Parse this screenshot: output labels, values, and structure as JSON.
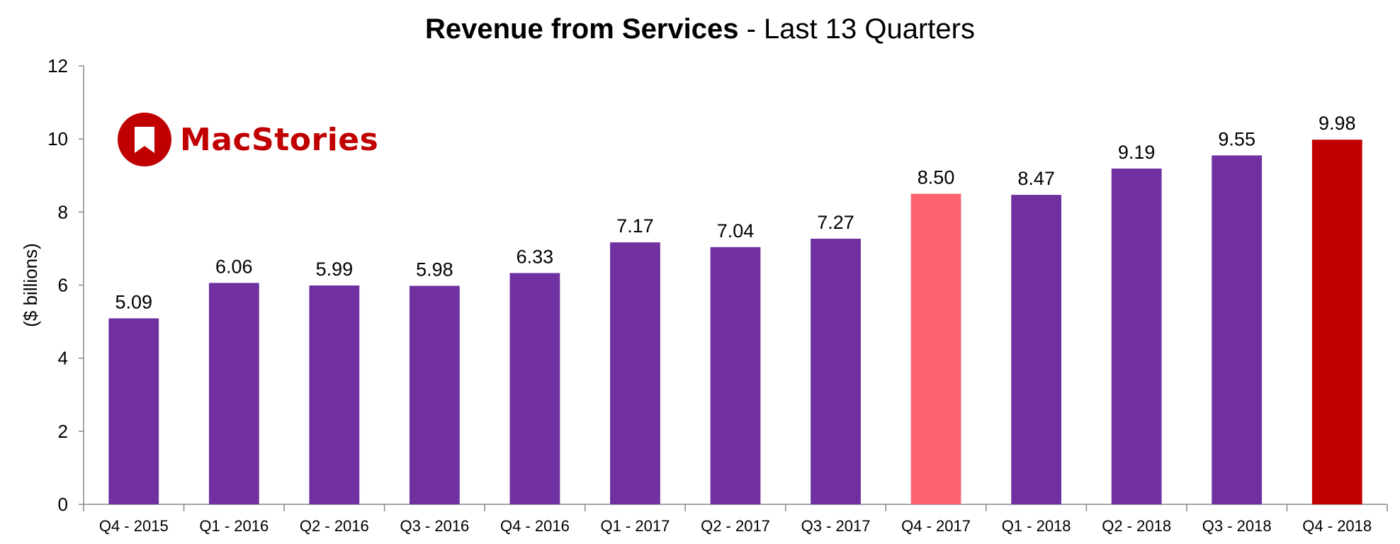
{
  "title": {
    "main": "Revenue from Services",
    "separator": " - ",
    "sub": "Last 13 Quarters"
  },
  "logo": {
    "text": "MacStories",
    "icon": "bookmark-icon",
    "color": "#c00000"
  },
  "colors": {
    "bar_default": "#7030a0",
    "bar_highlight_prev_year": "#ff6370",
    "bar_highlight_current": "#c00000",
    "axis": "#888888"
  },
  "chart_data": {
    "type": "bar",
    "title": "Revenue from Services - Last 13 Quarters",
    "xlabel": "",
    "ylabel": "($ billions)",
    "ylim": [
      0,
      12
    ],
    "yticks": [
      0,
      2,
      4,
      6,
      8,
      10,
      12
    ],
    "grid": false,
    "categories": [
      "Q4 - 2015",
      "Q1 - 2016",
      "Q2 - 2016",
      "Q3 - 2016",
      "Q4 - 2016",
      "Q1 - 2017",
      "Q2 - 2017",
      "Q3 - 2017",
      "Q4 - 2017",
      "Q1 - 2018",
      "Q2 - 2018",
      "Q3 - 2018",
      "Q4 - 2018"
    ],
    "values": [
      5.09,
      6.06,
      5.99,
      5.98,
      6.33,
      7.17,
      7.04,
      7.27,
      8.5,
      8.47,
      9.19,
      9.55,
      9.98
    ],
    "labels": [
      "5.09",
      "6.06",
      "5.99",
      "5.98",
      "6.33",
      "7.17",
      "7.04",
      "7.27",
      "8.50",
      "8.47",
      "9.19",
      "9.55",
      "9.98"
    ],
    "bar_colors": [
      "#7030a0",
      "#7030a0",
      "#7030a0",
      "#7030a0",
      "#7030a0",
      "#7030a0",
      "#7030a0",
      "#7030a0",
      "#ff6370",
      "#7030a0",
      "#7030a0",
      "#7030a0",
      "#c00000"
    ]
  }
}
